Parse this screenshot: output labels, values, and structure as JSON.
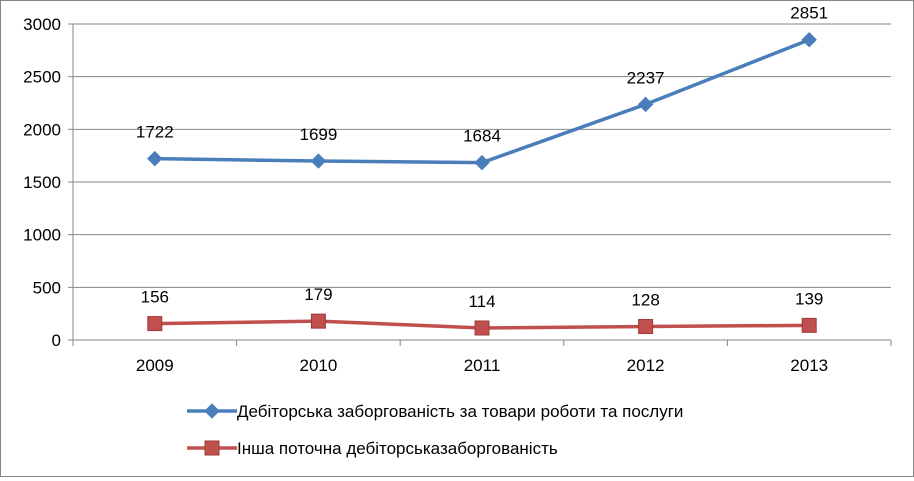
{
  "chart_data": {
    "type": "line",
    "title": "",
    "xlabel": "",
    "ylabel": "",
    "categories": [
      "2009",
      "2010",
      "2011",
      "2012",
      "2013"
    ],
    "ylim": [
      0,
      3000
    ],
    "yticks": [
      0,
      500,
      1000,
      1500,
      2000,
      2500,
      3000
    ],
    "grid": true,
    "legend_position": "bottom",
    "series": [
      {
        "name": "Дебіторська заборгованість за товари роботи та послуги",
        "values": [
          1722,
          1699,
          1684,
          2237,
          2851
        ],
        "color": "#4a7ebb",
        "marker": "diamond"
      },
      {
        "name": "Інша поточна дебіторськазаборгованість",
        "values": [
          156,
          179,
          114,
          128,
          139
        ],
        "color": "#c0504d",
        "marker": "square"
      }
    ]
  }
}
